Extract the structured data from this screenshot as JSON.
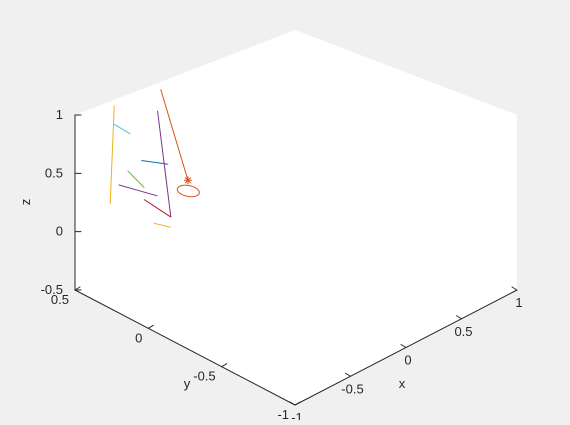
{
  "figure": {
    "background_color": "#f0f0f0",
    "axes_color": "#ffffff",
    "axis_line_color": "#262626"
  },
  "chart_data": {
    "type": "line3d",
    "view": "isometric",
    "grid": false,
    "xlabel": "x",
    "ylabel": "y",
    "zlabel": "z",
    "xlim": [
      -1,
      1
    ],
    "ylim": [
      -1,
      0.5
    ],
    "zlim": [
      -0.5,
      1
    ],
    "x_ticks": [
      {
        "value": -1,
        "label": "-1"
      },
      {
        "value": -0.5,
        "label": "-0.5"
      },
      {
        "value": 0,
        "label": "0"
      },
      {
        "value": 0.5,
        "label": "0.5"
      },
      {
        "value": 1,
        "label": "1"
      }
    ],
    "y_ticks": [
      {
        "value": -1,
        "label": "-1"
      },
      {
        "value": -0.5,
        "label": "-0.5"
      },
      {
        "value": 0,
        "label": "0"
      },
      {
        "value": 0.5,
        "label": "0.5"
      }
    ],
    "z_ticks": [
      {
        "value": -0.5,
        "label": "-0.5"
      },
      {
        "value": 0,
        "label": "0"
      },
      {
        "value": 0.5,
        "label": "0.5"
      },
      {
        "value": 1,
        "label": "1"
      }
    ],
    "series": [
      {
        "color": "#d95319",
        "points": [
          [
            -0.63,
            0.01,
            0.58
          ],
          [
            -0.36,
            0.4,
            0.97
          ]
        ]
      },
      {
        "color": "#4dbeee",
        "points": [
          [
            -0.68,
            0.48,
            0.78
          ],
          [
            -0.54,
            0.47,
            0.63
          ]
        ]
      },
      {
        "color": "#77ac30",
        "points": [
          [
            -0.83,
            0.27,
            0.59
          ],
          [
            -0.76,
            0.21,
            0.45
          ]
        ]
      },
      {
        "color": "#0072bd",
        "points": [
          [
            -0.57,
            0.19,
            0.57
          ],
          [
            -0.68,
            0.29,
            0.59
          ]
        ]
      },
      {
        "color": "#7e2f8e",
        "points": [
          [
            -0.6,
            0.24,
            1.01
          ],
          [
            -0.48,
            0.24,
            0.04
          ]
        ]
      },
      {
        "color": "#edb120",
        "points": [
          [
            -0.62,
            0.52,
            0.88
          ],
          [
            -0.63,
            0.54,
            0.03
          ]
        ]
      },
      {
        "color": "#7e2f8e",
        "points": [
          [
            -0.6,
            0.24,
            0.28
          ],
          [
            -0.66,
            0.46,
            0.26
          ]
        ]
      },
      {
        "color": "#edb120",
        "points": [
          [
            -0.73,
            0.05,
            0.2
          ],
          [
            -0.58,
            0.28,
            0.01
          ]
        ]
      },
      {
        "color": "#a2142f",
        "points": [
          [
            -0.48,
            0.24,
            0.04
          ],
          [
            -0.51,
            0.4,
            0.1
          ]
        ]
      },
      {
        "color": "#d95319",
        "type": "loop",
        "center": [
          -0.64,
          0.0,
          0.5
        ],
        "radius": 0.06
      }
    ],
    "markers": [
      {
        "symbol": "*",
        "color": "#d95319",
        "point": [
          -0.63,
          0.01,
          0.58
        ]
      }
    ]
  }
}
